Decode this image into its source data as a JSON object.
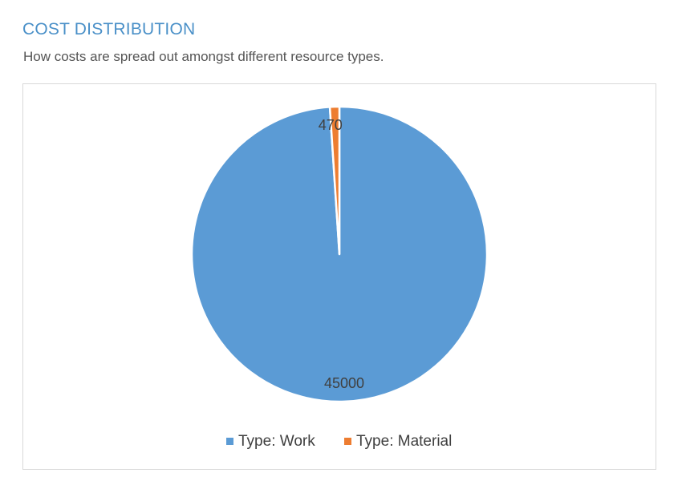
{
  "header": {
    "title": "COST DISTRIBUTION",
    "subtitle": "How costs are spread out amongst different resource types."
  },
  "chart_data": {
    "type": "pie",
    "categories": [
      "Type: Work",
      "Type: Material"
    ],
    "values": [
      45000,
      470
    ],
    "data_labels": [
      "45000",
      "470"
    ],
    "colors": [
      "#5b9bd5",
      "#ed7d31"
    ],
    "legend_position": "bottom",
    "start_angle_from_top_degrees": 0,
    "direction": "clockwise"
  }
}
